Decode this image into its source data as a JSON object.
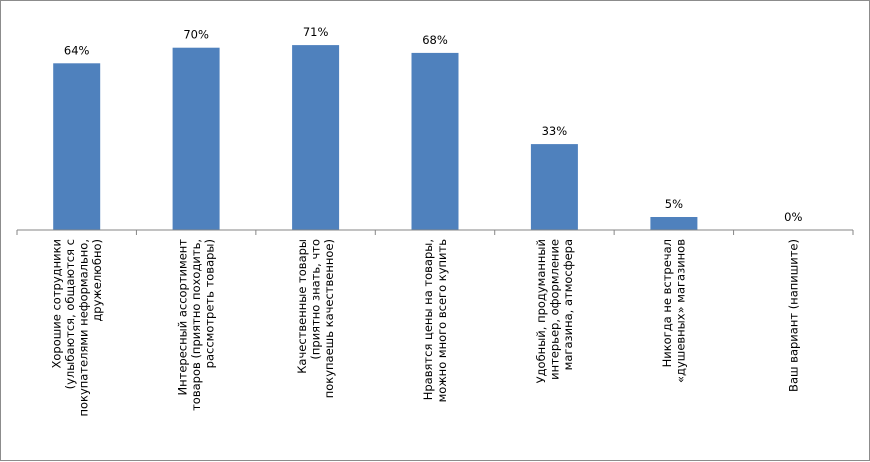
{
  "chart_data": {
    "type": "bar",
    "categories": [
      [
        "Хорошие сотрудники",
        "(улыбаются, общаются с",
        "покупателями неформально,",
        "дружелюбно)"
      ],
      [
        "Интересный ассортимент",
        "товаров (приятно походить,",
        "рассмотреть товары)"
      ],
      [
        "Качественные товары",
        "(приятно знать, что",
        "покупаешь качественное)"
      ],
      [
        "Нравятся цены на товары,",
        "можно много всего купить"
      ],
      [
        "Удобный, продуманный",
        "интерьер, оформление",
        "магазина, атмосфера"
      ],
      [
        "Никогда не встречал",
        "«душевных» магазинов"
      ],
      [
        "Ваш вариант (напишите)"
      ]
    ],
    "values": [
      64,
      70,
      71,
      68,
      33,
      5,
      0
    ],
    "data_labels": [
      "64%",
      "70%",
      "71%",
      "68%",
      "33%",
      "5%",
      "0%"
    ],
    "ylim": [
      0,
      100
    ],
    "grid": false,
    "bar_color": "#4f81bd",
    "axis_color": "#868686"
  }
}
